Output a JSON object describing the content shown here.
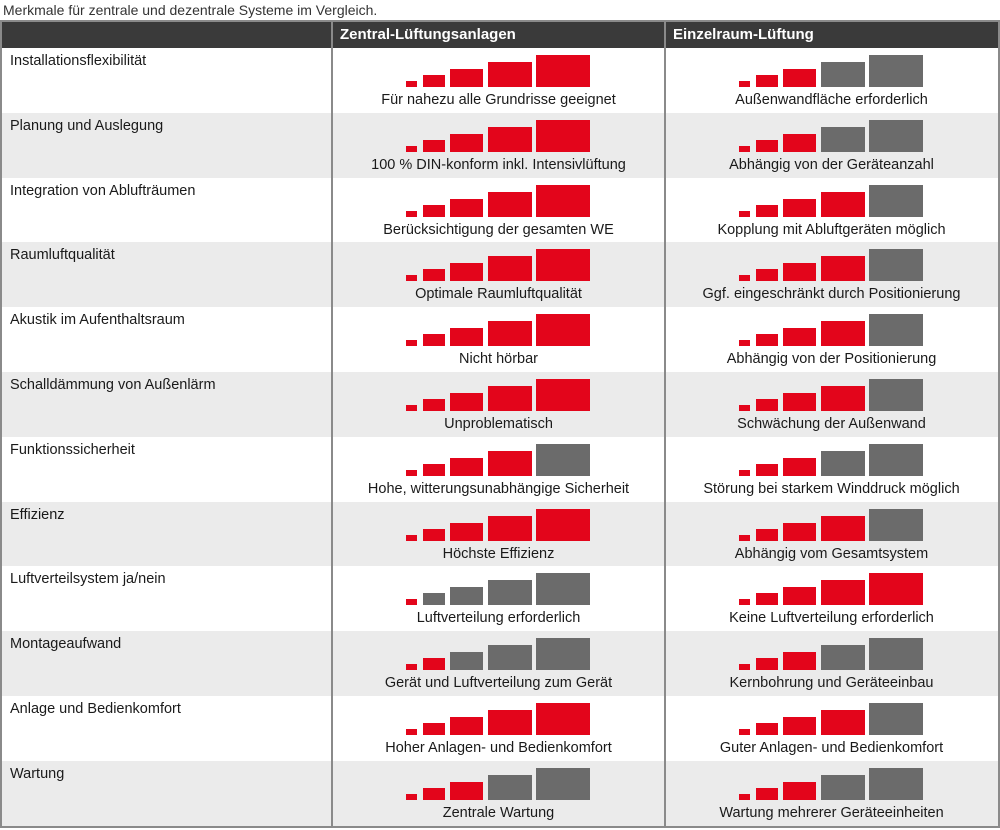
{
  "caption": "Merkmale für zentrale und dezentrale Systeme im Vergleich.",
  "header": {
    "col0": "",
    "col1": "Zentral-Lüftungsanlagen",
    "col2": "Einzelraum-Lüftung"
  },
  "colors": {
    "active": "#e3051b",
    "inactive": "#6b6b6b",
    "header_bg": "#3a3a3a",
    "row_shade": "#ebebeb"
  },
  "rating_scale_max": 5,
  "rows": [
    {
      "label": "Installationsflexibilität",
      "central": {
        "rating": 5,
        "text": "Für nahezu alle Grundrisse geeignet"
      },
      "single": {
        "rating": 3,
        "text": "Außenwandfläche erforderlich"
      }
    },
    {
      "label": "Planung und Auslegung",
      "central": {
        "rating": 5,
        "text": "100 % DIN-konform inkl. Intensivlüftung"
      },
      "single": {
        "rating": 3,
        "text": "Abhängig von der Geräteanzahl"
      }
    },
    {
      "label": "Integration von Ablufträumen",
      "central": {
        "rating": 5,
        "text": "Berücksichtigung der gesamten WE"
      },
      "single": {
        "rating": 4,
        "text": "Kopplung mit Abluftgeräten möglich"
      }
    },
    {
      "label": "Raumluftqualität",
      "central": {
        "rating": 5,
        "text": "Optimale Raumluftqualität"
      },
      "single": {
        "rating": 4,
        "text": "Ggf. eingeschränkt durch Positionierung"
      }
    },
    {
      "label": "Akustik im Aufenthaltsraum",
      "central": {
        "rating": 5,
        "text": "Nicht hörbar"
      },
      "single": {
        "rating": 4,
        "text": "Abhängig von der Positionierung"
      }
    },
    {
      "label": "Schalldämmung von Außenlärm",
      "central": {
        "rating": 5,
        "text": "Unproblematisch"
      },
      "single": {
        "rating": 4,
        "text": "Schwächung der Außenwand"
      }
    },
    {
      "label": "Funktionssicherheit",
      "central": {
        "rating": 4,
        "text": "Hohe, witterungsunabhängige Sicherheit"
      },
      "single": {
        "rating": 3,
        "text": "Störung bei starkem Winddruck möglich"
      }
    },
    {
      "label": "Effizienz",
      "central": {
        "rating": 5,
        "text": "Höchste Effizienz"
      },
      "single": {
        "rating": 4,
        "text": "Abhängig vom Gesamtsystem"
      }
    },
    {
      "label": "Luftverteilsystem ja/nein",
      "central": {
        "rating": 1,
        "text": "Luftverteilung erforderlich"
      },
      "single": {
        "rating": 5,
        "text": "Keine Luftverteilung erforderlich"
      }
    },
    {
      "label": "Montageaufwand",
      "central": {
        "rating": 2,
        "text": "Gerät und Luftverteilung zum Gerät"
      },
      "single": {
        "rating": 3,
        "text": "Kernbohrung und Geräteeinbau"
      }
    },
    {
      "label": "Anlage und Bedienkomfort",
      "central": {
        "rating": 5,
        "text": "Hoher Anlagen- und Bedienkomfort"
      },
      "single": {
        "rating": 4,
        "text": "Guter Anlagen- und Bedienkomfort"
      }
    },
    {
      "label": "Wartung",
      "central": {
        "rating": 3,
        "text": "Zentrale Wartung"
      },
      "single": {
        "rating": 3,
        "text": "Wartung mehrerer Geräteeinheiten"
      }
    }
  ]
}
